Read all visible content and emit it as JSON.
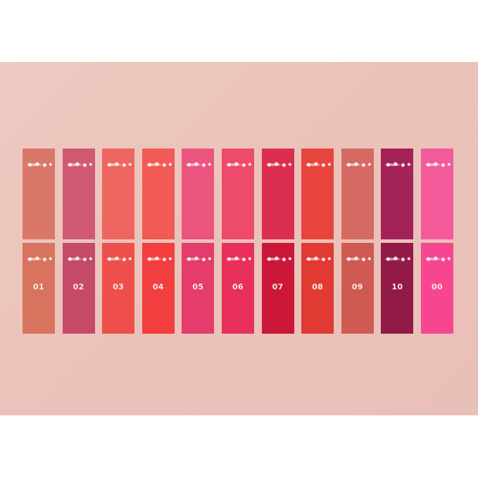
{
  "swatches": [
    {
      "label": "01",
      "top_color": "#d9776a",
      "bottom_color": "#d8735e"
    },
    {
      "label": "02",
      "top_color": "#cf5a72",
      "bottom_color": "#c54a68"
    },
    {
      "label": "03",
      "top_color": "#ef6560",
      "bottom_color": "#ee4f4a"
    },
    {
      "label": "04",
      "top_color": "#f25a55",
      "bottom_color": "#f23e3e"
    },
    {
      "label": "05",
      "top_color": "#ec5480",
      "bottom_color": "#e43c6c"
    },
    {
      "label": "06",
      "top_color": "#ee4a6a",
      "bottom_color": "#e8305a"
    },
    {
      "label": "07",
      "top_color": "#dc2e4e",
      "bottom_color": "#cc1838"
    },
    {
      "label": "08",
      "top_color": "#e8443e",
      "bottom_color": "#e03a32"
    },
    {
      "label": "09",
      "top_color": "#d46a62",
      "bottom_color": "#cf5a52"
    },
    {
      "label": "10",
      "top_color": "#a32258",
      "bottom_color": "#921a46"
    },
    {
      "label": "00",
      "top_color": "#f45a9a",
      "bottom_color": "#f74690"
    }
  ],
  "background_color": "#ecc4bc"
}
